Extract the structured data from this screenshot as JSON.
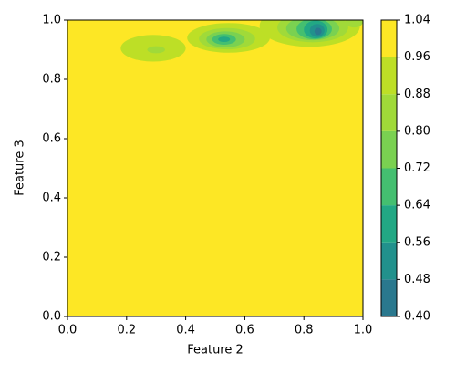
{
  "chart_data": {
    "type": "contour",
    "xlabel": "Feature 2",
    "ylabel": "Feature 3",
    "xlim": [
      0,
      1
    ],
    "ylim": [
      0,
      1
    ],
    "xticks": [
      {
        "value": 0,
        "label": "0.0"
      },
      0.2,
      0.4,
      0.6,
      0.8,
      {
        "value": 1,
        "label": "1.0"
      }
    ],
    "yticks": [
      {
        "value": 0,
        "label": "0.0"
      },
      0.2,
      0.4,
      0.6,
      0.8,
      {
        "value": 1,
        "label": "1.0"
      }
    ],
    "levels": [
      {
        "value": 0.4,
        "label": "0.40"
      },
      0.48,
      0.56,
      0.64,
      0.72,
      {
        "value": 0.8,
        "label": "0.80"
      },
      0.88,
      0.96,
      1.04
    ],
    "colors": [
      "#2a788e",
      "#21918c",
      "#22a884",
      "#44bf70",
      "#7ad151",
      "#a0da39",
      "#bddf26",
      "#fde725"
    ],
    "background_value": 1.0,
    "regions": [
      {
        "x": 0.29,
        "y": 0.905,
        "rx": 0.11,
        "ry": 0.045,
        "value": 0.92
      },
      {
        "x": 0.3,
        "y": 0.9,
        "rx": 0.03,
        "ry": 0.012,
        "value": 0.84
      },
      {
        "x": 0.545,
        "y": 0.94,
        "rx": 0.14,
        "ry": 0.05,
        "value": 0.92
      },
      {
        "x": 0.54,
        "y": 0.937,
        "rx": 0.095,
        "ry": 0.036,
        "value": 0.84
      },
      {
        "x": 0.535,
        "y": 0.935,
        "rx": 0.065,
        "ry": 0.027,
        "value": 0.76
      },
      {
        "x": 0.53,
        "y": 0.935,
        "rx": 0.04,
        "ry": 0.018,
        "value": 0.68
      },
      {
        "x": 0.53,
        "y": 0.935,
        "rx": 0.02,
        "ry": 0.009,
        "value": 0.6
      },
      {
        "x": 0.82,
        "y": 0.98,
        "rx": 0.17,
        "ry": 0.07,
        "value": 0.92
      },
      {
        "x": 0.83,
        "y": 0.975,
        "rx": 0.12,
        "ry": 0.05,
        "value": 0.84
      },
      {
        "x": 0.83,
        "y": 0.972,
        "rx": 0.09,
        "ry": 0.04,
        "value": 0.76
      },
      {
        "x": 0.835,
        "y": 0.97,
        "rx": 0.06,
        "ry": 0.035,
        "value": 0.68
      },
      {
        "x": 0.84,
        "y": 0.968,
        "rx": 0.04,
        "ry": 0.03,
        "value": 0.6
      },
      {
        "x": 0.845,
        "y": 0.965,
        "rx": 0.025,
        "ry": 0.022,
        "value": 0.52
      },
      {
        "x": 0.848,
        "y": 0.962,
        "rx": 0.012,
        "ry": 0.012,
        "value": 0.44
      },
      {
        "x": 0.97,
        "y": 0.995,
        "rx": 0.03,
        "ry": 0.02,
        "value": 0.84
      }
    ]
  }
}
